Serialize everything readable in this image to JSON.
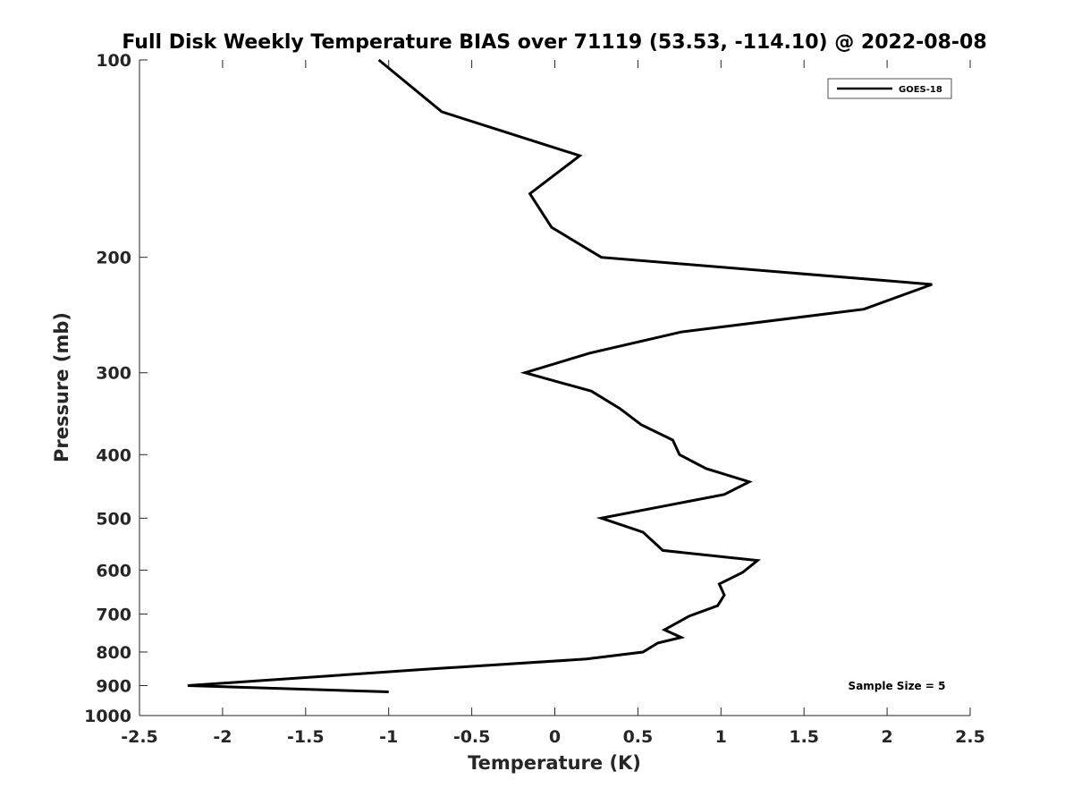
{
  "chart_data": {
    "type": "line",
    "title": "Full Disk Weekly Temperature BIAS over 71119 (53.53, -114.10) @ 2022-08-08",
    "xlabel": "Temperature (K)",
    "ylabel": "Pressure (mb)",
    "xlim": [
      -2.5,
      2.5
    ],
    "ylim": [
      1000,
      100
    ],
    "yscale": "log",
    "y_reversed": true,
    "xticks": [
      -2.5,
      -2,
      -1.5,
      -1,
      -0.5,
      0,
      0.5,
      1,
      1.5,
      2,
      2.5
    ],
    "xtick_labels": [
      "-2.5",
      "-2",
      "-1.5",
      "-1",
      "-0.5",
      "0",
      "0.5",
      "1",
      "1.5",
      "2",
      "2.5"
    ],
    "yticks": [
      100,
      200,
      300,
      400,
      500,
      600,
      700,
      800,
      900,
      1000
    ],
    "ytick_labels": [
      "100",
      "200",
      "300",
      "400",
      "500",
      "600",
      "700",
      "800",
      "900",
      "1000"
    ],
    "grid": false,
    "legend_position": "top-right",
    "series": [
      {
        "name": "GOES-18",
        "color": "#000000",
        "x": [
          -1.06,
          -0.68,
          0.15,
          -0.15,
          -0.02,
          0.28,
          2.27,
          1.86,
          0.76,
          0.21,
          -0.18,
          0.22,
          0.39,
          0.52,
          0.71,
          0.75,
          0.91,
          1.17,
          1.02,
          0.28,
          0.53,
          0.65,
          1.22,
          1.13,
          0.99,
          1.02,
          0.98,
          0.81,
          0.66,
          0.76,
          0.62,
          0.53,
          0.19,
          -0.78,
          -2.21,
          -1.0
        ],
        "y": [
          100,
          120,
          140,
          160,
          180,
          200,
          220,
          240,
          260,
          280,
          300,
          320,
          340,
          360,
          380,
          400,
          420,
          440,
          460,
          500,
          525,
          560,
          580,
          605,
          630,
          655,
          680,
          705,
          740,
          760,
          775,
          800,
          820,
          850,
          900,
          920
        ]
      }
    ],
    "annotations": [
      {
        "text": "Sample Size = 5",
        "position": "bottom-right"
      }
    ]
  }
}
